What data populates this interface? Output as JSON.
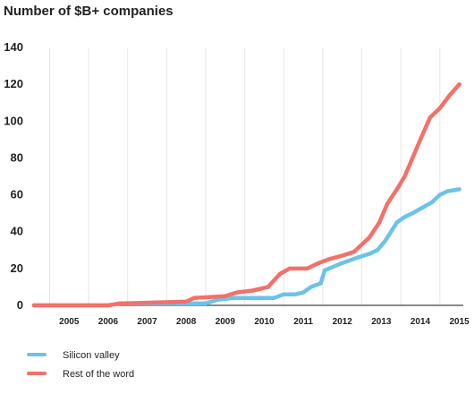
{
  "chart_data": {
    "type": "line",
    "title": "Number of $B+ companies",
    "xlabel": "",
    "ylabel": "",
    "x_ticks": [
      "2005",
      "2006",
      "2007",
      "2008",
      "2009",
      "2010",
      "2011",
      "2012",
      "2013",
      "2014",
      "2015"
    ],
    "xlim": [
      2004.6,
      2015.6
    ],
    "ylim": [
      0,
      140
    ],
    "y_ticks": [
      0,
      20,
      40,
      60,
      80,
      100,
      120,
      140
    ],
    "grid": "vertical",
    "legend_position": "bottom-left",
    "series": [
      {
        "name": "Silicon valley",
        "color": "#6cc3ea",
        "x": [
          2004.6,
          2006.5,
          2006.8,
          2007.5,
          2008.0,
          2008.7,
          2009.0,
          2009.3,
          2009.7,
          2010.0,
          2010.5,
          2010.75,
          2011.0,
          2011.3,
          2011.5,
          2011.7,
          2011.95,
          2012.05,
          2012.5,
          2012.9,
          2013.2,
          2013.4,
          2013.6,
          2013.9,
          2014.1,
          2014.3,
          2014.55,
          2014.8,
          2015.0,
          2015.2,
          2015.5
        ],
        "y": [
          0,
          0,
          1,
          1,
          1,
          1,
          1,
          3,
          4,
          4,
          4,
          4,
          6,
          6,
          7,
          10,
          12,
          19,
          23,
          26,
          28,
          30,
          35,
          45,
          48,
          50,
          53,
          56,
          60,
          62,
          63
        ]
      },
      {
        "name": "Rest of the word",
        "color": "#f47069",
        "x": [
          2004.6,
          2006.5,
          2006.8,
          2008.5,
          2008.7,
          2009.5,
          2009.8,
          2010.2,
          2010.6,
          2010.9,
          2011.15,
          2011.6,
          2011.9,
          2012.15,
          2012.5,
          2012.8,
          2013.0,
          2013.2,
          2013.45,
          2013.65,
          2013.9,
          2014.1,
          2014.3,
          2014.5,
          2014.75,
          2015.0,
          2015.25,
          2015.5
        ],
        "y": [
          0,
          0,
          1,
          2,
          4,
          5,
          7,
          8,
          10,
          17,
          20,
          20,
          23,
          25,
          27,
          29,
          33,
          37,
          45,
          55,
          63,
          70,
          80,
          90,
          102,
          107,
          114,
          120
        ]
      }
    ]
  }
}
